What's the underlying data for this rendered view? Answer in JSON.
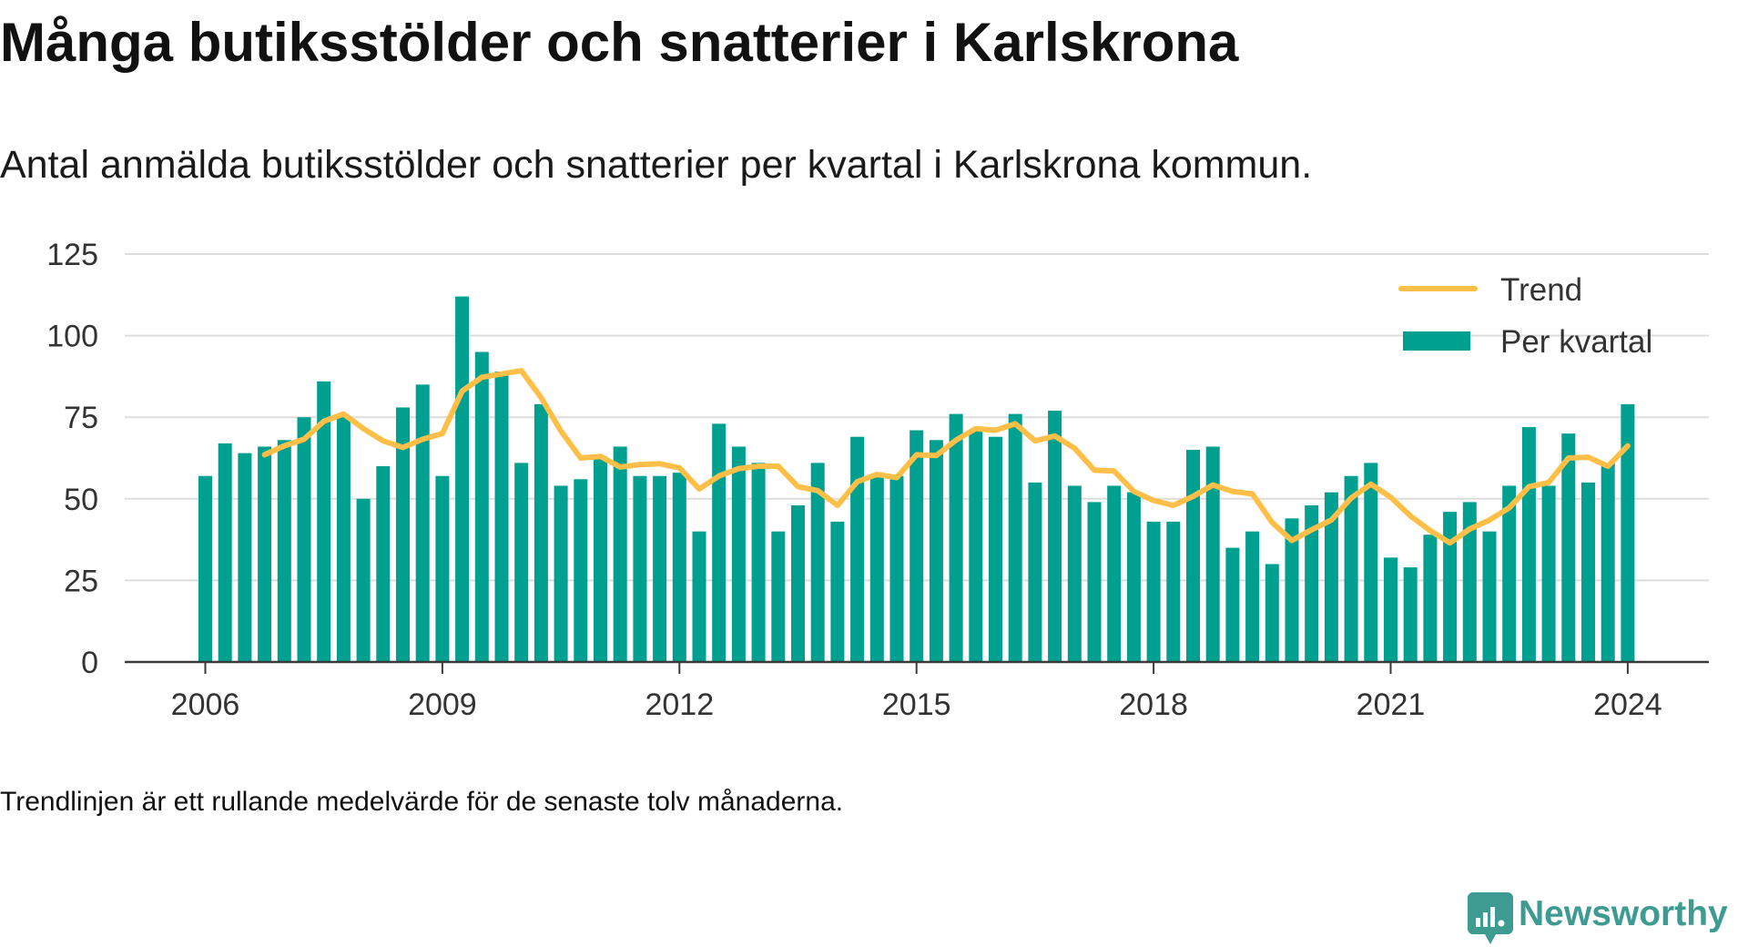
{
  "chart_data": {
    "type": "bar",
    "title": "Många butiksstölder och snatterier i Karlskrona",
    "subtitle": "Antal anmälda butiksstölder och snatterier per kvartal i Karlskrona kommun.",
    "note": "Trendlinjen är ett rullande medelvärde för de senaste tolv månaderna.",
    "xlabel": "",
    "ylabel": "",
    "ylim": [
      0,
      125
    ],
    "yticks": [
      0,
      25,
      50,
      75,
      100,
      125
    ],
    "xticks": [
      2006,
      2009,
      2012,
      2015,
      2018,
      2021,
      2024
    ],
    "grid": true,
    "legend": "top-right",
    "x": [
      2006,
      2006.25,
      2006.5,
      2006.75,
      2007,
      2007.25,
      2007.5,
      2007.75,
      2008,
      2008.25,
      2008.5,
      2008.75,
      2009,
      2009.25,
      2009.5,
      2009.75,
      2010,
      2010.25,
      2010.5,
      2010.75,
      2011,
      2011.25,
      2011.5,
      2011.75,
      2012,
      2012.25,
      2012.5,
      2012.75,
      2013,
      2013.25,
      2013.5,
      2013.75,
      2014,
      2014.25,
      2014.5,
      2014.75,
      2015,
      2015.25,
      2015.5,
      2015.75,
      2016,
      2016.25,
      2016.5,
      2016.75,
      2017,
      2017.25,
      2017.5,
      2017.75,
      2018,
      2018.25,
      2018.5,
      2018.75,
      2019,
      2019.25,
      2019.5,
      2019.75,
      2020,
      2020.25,
      2020.5,
      2020.75,
      2021,
      2021.25,
      2021.5,
      2021.75,
      2022,
      2022.25,
      2022.5,
      2022.75,
      2023,
      2023.25,
      2023.5,
      2023.75,
      2024
    ],
    "series": [
      {
        "name": "Per kvartal",
        "type": "bar",
        "color": "#00a091",
        "values": [
          57,
          67,
          64,
          66,
          68,
          75,
          86,
          75,
          50,
          60,
          78,
          85,
          57,
          112,
          95,
          89,
          61,
          79,
          54,
          56,
          63,
          66,
          57,
          57,
          58,
          40,
          73,
          66,
          61,
          40,
          48,
          61,
          43,
          69,
          57,
          57,
          71,
          68,
          76,
          71,
          69,
          76,
          55,
          77,
          54,
          49,
          54,
          52,
          43,
          43,
          65,
          66,
          35,
          40,
          30,
          44,
          48,
          52,
          57,
          61,
          32,
          29,
          39,
          46,
          49,
          40,
          54,
          72,
          54,
          70,
          55,
          61,
          79
        ]
      },
      {
        "name": "Trend",
        "type": "line",
        "color": "#fdbf47",
        "values": [
          null,
          null,
          null,
          63.5,
          66.25,
          68.25,
          73.75,
          76,
          71.5,
          67.75,
          65.75,
          68.25,
          70,
          83,
          87.25,
          88.25,
          89.25,
          81,
          70.75,
          62.5,
          63,
          59.75,
          60.5,
          60.75,
          59.5,
          53,
          57,
          59.25,
          60,
          60,
          53.75,
          52.5,
          48,
          55.25,
          57.5,
          56.5,
          63.5,
          63.25,
          68,
          71.5,
          71,
          73,
          67.75,
          69.25,
          65.5,
          58.75,
          58.5,
          52.25,
          49.5,
          48,
          50.75,
          54.25,
          52.25,
          51.5,
          42.75,
          37.25,
          40.5,
          43.5,
          50.25,
          54.5,
          50.5,
          44.75,
          40.25,
          36.5,
          40.75,
          43.5,
          47.25,
          53.75,
          55,
          62.5,
          62.75,
          60,
          66.25
        ]
      }
    ],
    "colors": {
      "grid": "#dddddd",
      "axis": "#3a3a3a"
    }
  },
  "brand": {
    "name": "Newsworthy",
    "icon": "newsworthy-logo-icon",
    "color": "#3e9b92"
  }
}
